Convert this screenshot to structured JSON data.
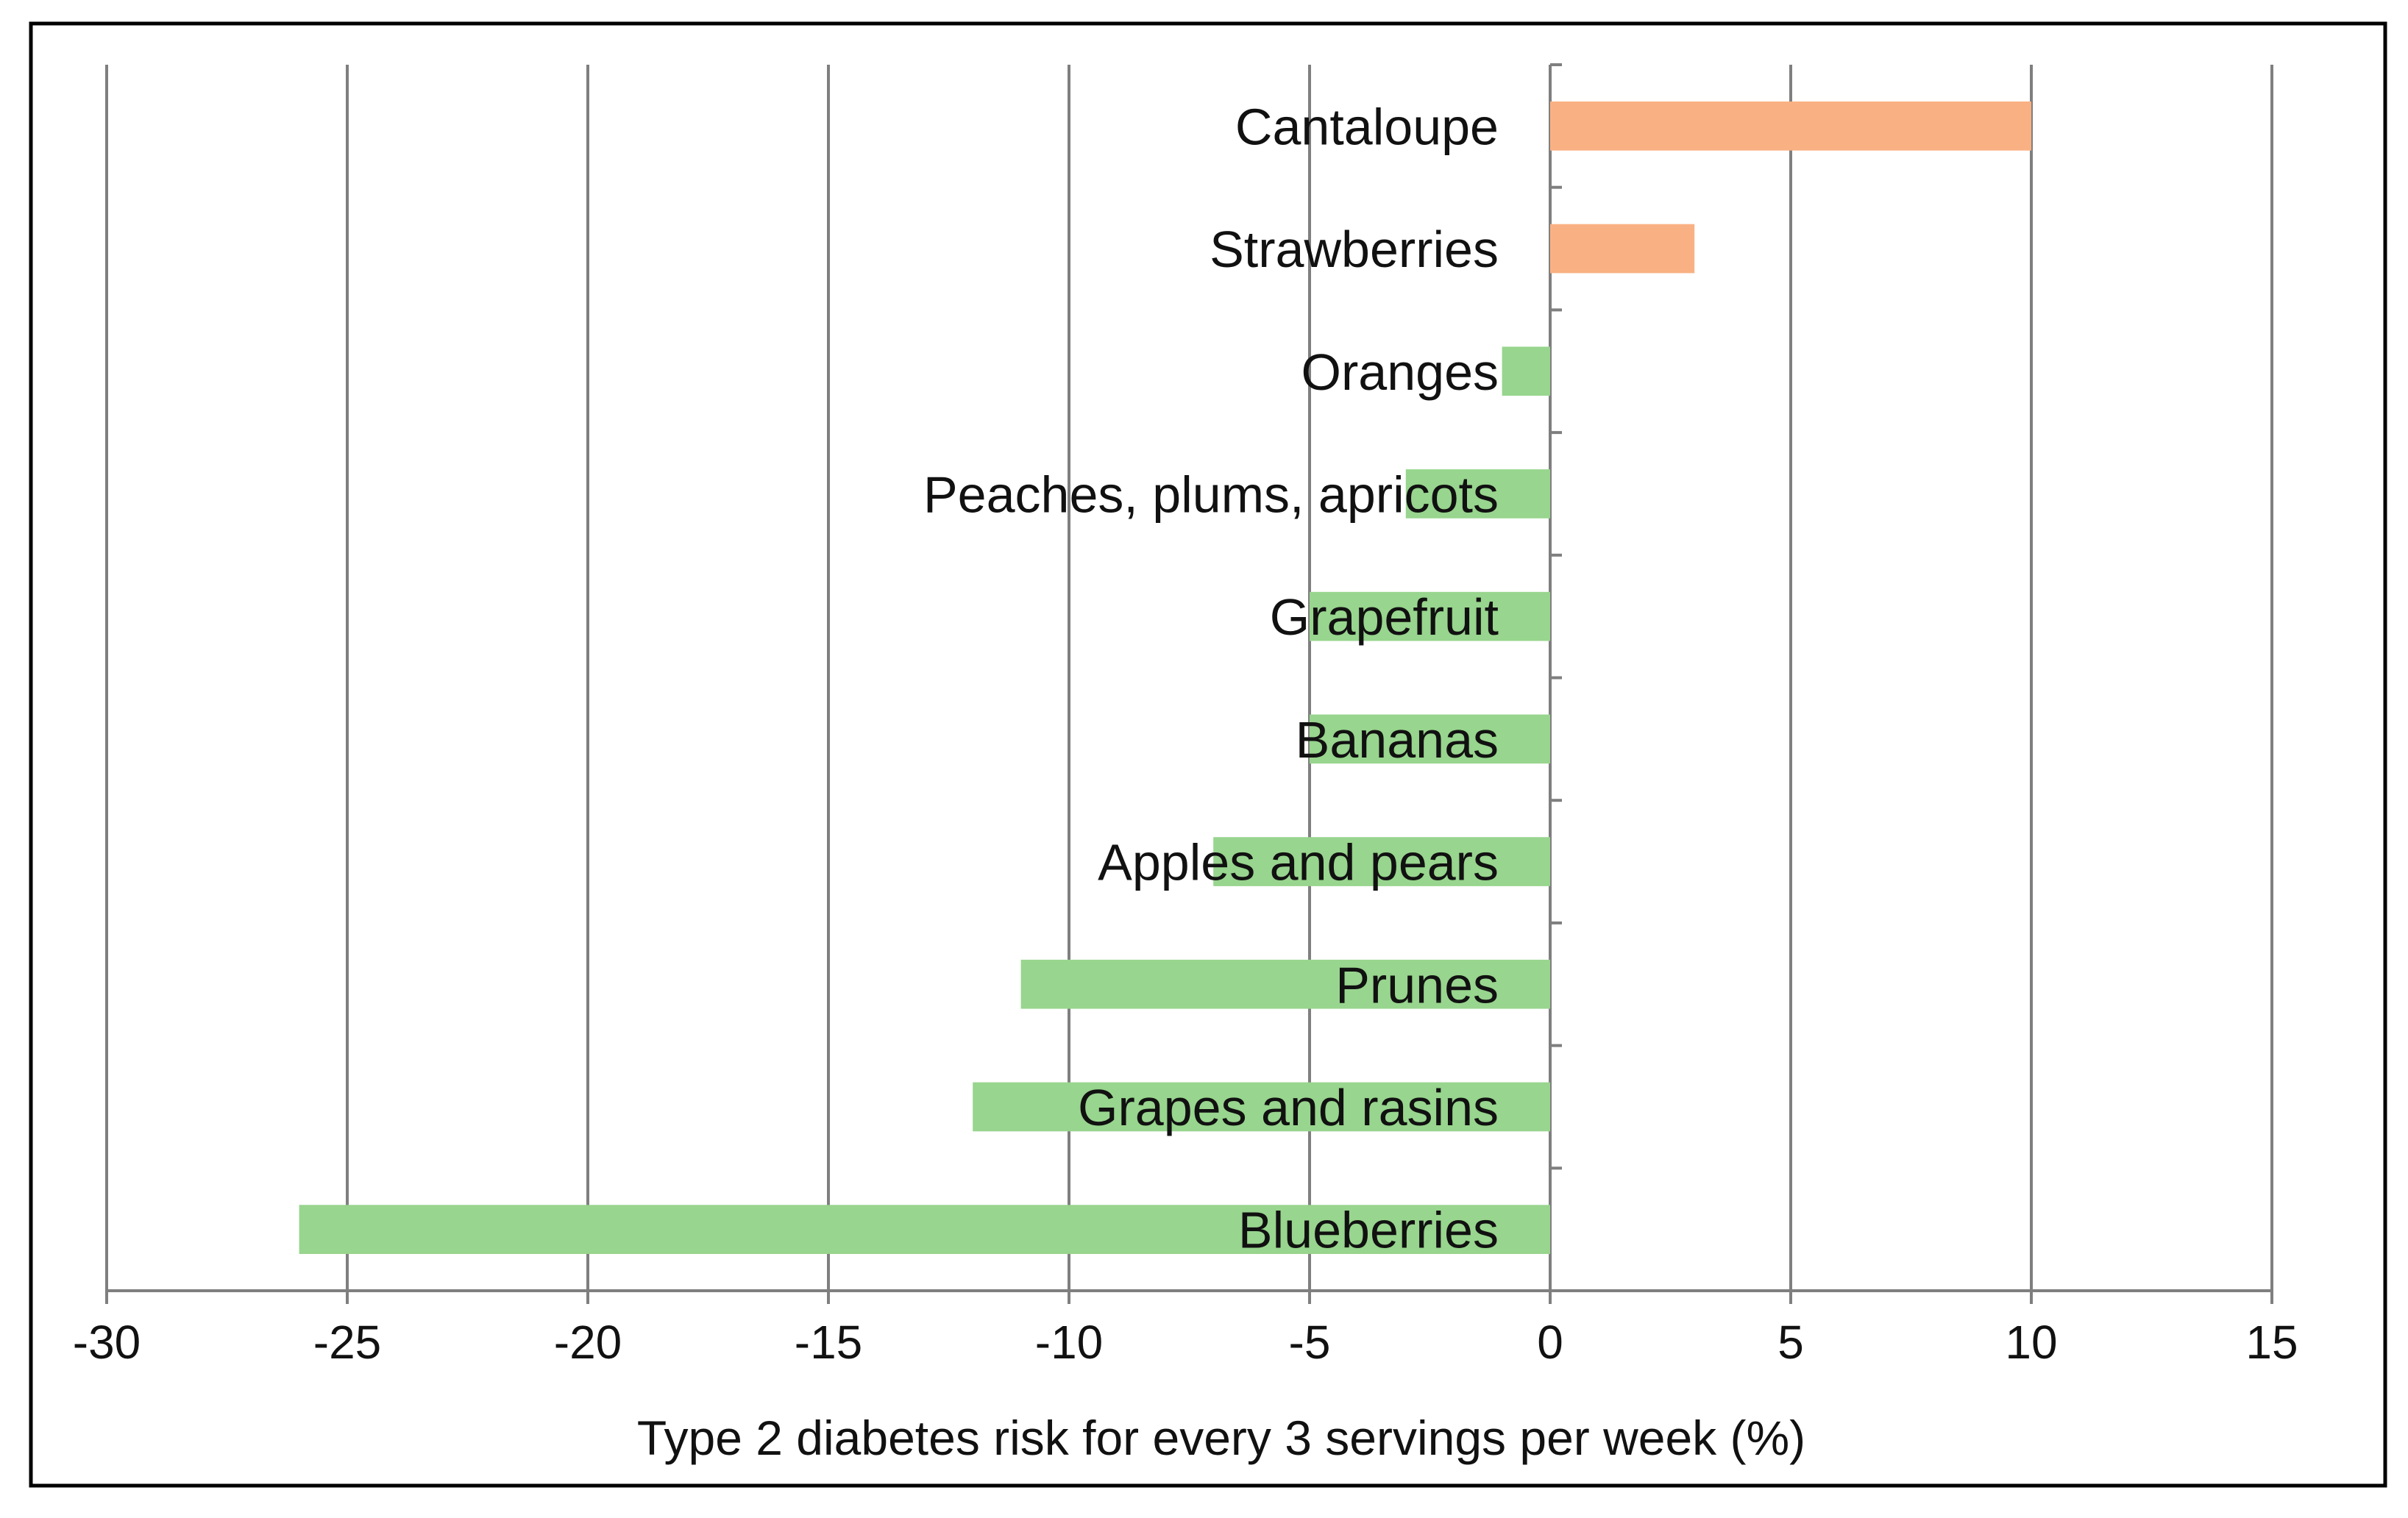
{
  "chart_data": {
    "type": "bar",
    "orientation": "horizontal",
    "title": "",
    "xlabel": "Type 2 diabetes risk for every 3 servings per week (%)",
    "ylabel": "",
    "xlim": [
      -30,
      15
    ],
    "x_ticks": [
      -30,
      -25,
      -20,
      -15,
      -10,
      -5,
      0,
      5,
      10,
      15
    ],
    "x_tick_labels": [
      "-30",
      "-25",
      "-20",
      "-15",
      "-10",
      "-5",
      "0",
      "5",
      "10",
      "15"
    ],
    "grid": "vertical",
    "categories": [
      "Cantaloupe",
      "Strawberries",
      "Oranges",
      "Peaches, plums, apricots",
      "Grapefruit",
      "Bananas",
      "Apples and pears",
      "Prunes",
      "Grapes and rasins",
      "Blueberries"
    ],
    "values": [
      10,
      3,
      -1,
      -3,
      -5,
      -5,
      -7,
      -11,
      -12,
      -26
    ],
    "colors": {
      "positive": "#F9B183",
      "negative": "#98D58E",
      "grid": "#7f7f7f",
      "frame": "#000000"
    }
  }
}
